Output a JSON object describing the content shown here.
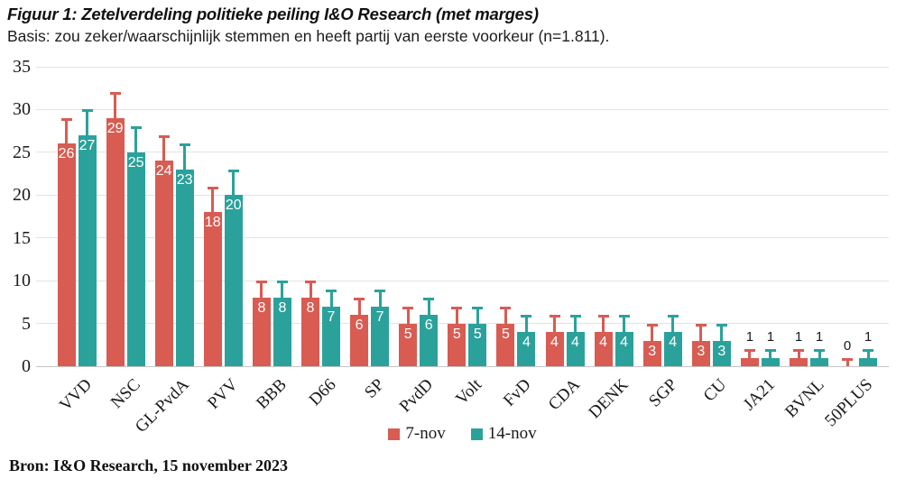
{
  "header": {
    "title": "Figuur 1: Zetelverdeling politieke peiling I&O Research (met marges)",
    "subtitle": "Basis: zou zeker/waarschijnlijk stemmen en heeft partij van eerste voorkeur (n=1.811)."
  },
  "footer": {
    "source": "Bron: I&O Research, 15 november 2023"
  },
  "colors": {
    "series1": "#d85c52",
    "series2": "#2aa29b",
    "grid": "#e3e3e3",
    "baseline": "#c6c6c6",
    "text": "#1a1a1a",
    "value_label_inside": "#ffffff",
    "value_label_outside": "#1a1a1a"
  },
  "chart_data": {
    "type": "bar",
    "title": "Figuur 1: Zetelverdeling politieke peiling I&O Research (met marges)",
    "subtitle": "Basis: zou zeker/waarschijnlijk stemmen en heeft partij van eerste voorkeur (n=1.811).",
    "source": "Bron: I&O Research, 15 november 2023",
    "categories": [
      "VVD",
      "NSC",
      "GL-PvdA",
      "PVV",
      "BBB",
      "D66",
      "SP",
      "PvdD",
      "Volt",
      "FvD",
      "CDA",
      "DENK",
      "SGP",
      "CU",
      "JA21",
      "BVNL",
      "50PLUS"
    ],
    "series": [
      {
        "name": "7-nov",
        "color": "#d85c52",
        "values": [
          26,
          29,
          24,
          18,
          8,
          8,
          6,
          5,
          5,
          5,
          4,
          4,
          3,
          3,
          1,
          1,
          0
        ],
        "error_up": [
          3,
          3,
          3,
          3,
          2,
          2,
          2,
          2,
          2,
          2,
          2,
          2,
          2,
          2,
          1,
          1,
          1
        ]
      },
      {
        "name": "14-nov",
        "color": "#2aa29b",
        "values": [
          27,
          25,
          23,
          20,
          8,
          7,
          7,
          6,
          5,
          4,
          4,
          4,
          4,
          3,
          1,
          1,
          1
        ],
        "error_up": [
          3,
          3,
          3,
          3,
          2,
          2,
          2,
          2,
          2,
          2,
          2,
          2,
          2,
          2,
          1,
          1,
          1
        ]
      }
    ],
    "ylim": [
      0,
      35
    ],
    "yticks": [
      0,
      5,
      10,
      15,
      20,
      25,
      30,
      35
    ],
    "xlabel": "",
    "ylabel": "",
    "grid": true,
    "legend_position": "bottom-center",
    "error_bar_style": "upper whisker only, same color as bar, with cap",
    "value_label_rule": "values >= 3 in white inside bar top; values < 3 in black above error bar"
  }
}
